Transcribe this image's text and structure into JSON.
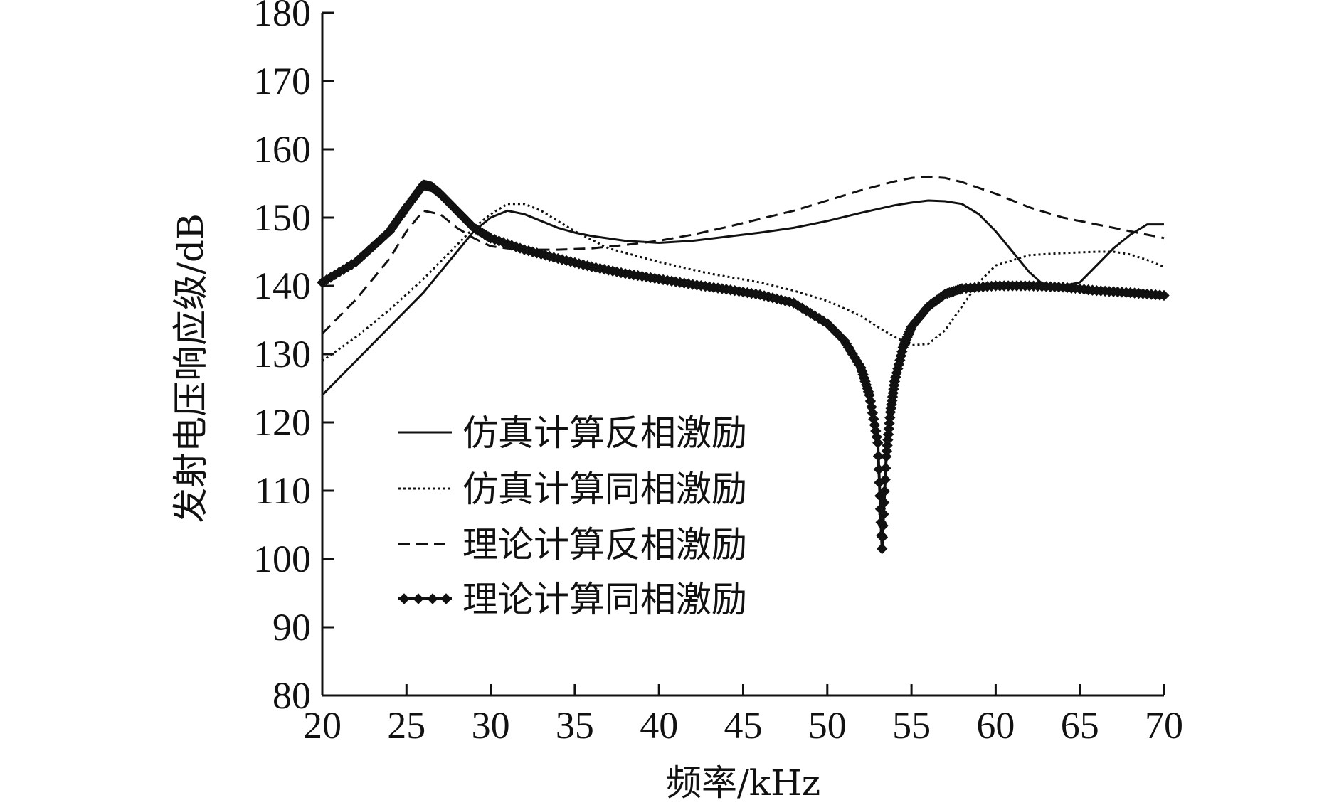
{
  "chart_data": {
    "type": "line",
    "xlabel": "频率/kHz",
    "ylabel": "发射电压响应级/dB",
    "xlim": [
      20,
      70
    ],
    "ylim": [
      80,
      180
    ],
    "xticks": [
      "20",
      "25",
      "30",
      "35",
      "40",
      "45",
      "50",
      "55",
      "60",
      "65",
      "70"
    ],
    "yticks": [
      "80",
      "90",
      "100",
      "110",
      "120",
      "130",
      "140",
      "150",
      "160",
      "170",
      "180"
    ],
    "grid": false,
    "legend_position": "lower-left",
    "series": [
      {
        "name": "仿真计算反相激励",
        "style": "solid",
        "x": [
          20,
          22,
          24,
          26,
          27,
          28,
          29,
          30,
          31,
          32,
          33,
          34,
          35,
          36,
          38,
          40,
          42,
          44,
          46,
          48,
          50,
          52,
          54,
          55,
          56,
          57,
          58,
          59,
          60,
          61,
          62,
          63,
          64,
          65,
          66,
          67,
          68,
          69,
          70
        ],
        "y": [
          124,
          129,
          134,
          139,
          142,
          145,
          148,
          150,
          151,
          150.5,
          149.5,
          148.5,
          147.8,
          147.3,
          146.6,
          146.3,
          146.6,
          147.2,
          147.8,
          148.5,
          149.5,
          150.7,
          151.8,
          152.2,
          152.5,
          152.4,
          152,
          150.5,
          148,
          145,
          142,
          139.8,
          140,
          140.5,
          143,
          145.5,
          147.5,
          149,
          149
        ]
      },
      {
        "name": "仿真计算同相激励",
        "style": "dotted",
        "x": [
          20,
          22,
          24,
          26,
          28,
          29,
          30,
          31,
          32,
          33,
          34,
          35,
          37,
          40,
          43,
          46,
          48,
          50,
          52,
          53,
          54,
          55,
          56,
          57,
          58,
          59,
          60,
          62,
          64,
          66,
          67,
          68,
          69,
          70
        ],
        "y": [
          129,
          132.5,
          136.5,
          141,
          146,
          148.5,
          150.5,
          152,
          152,
          151,
          149.5,
          148,
          145.5,
          143.5,
          141.8,
          140.5,
          139.3,
          137.8,
          135.6,
          134,
          132.5,
          131.3,
          131.5,
          133.5,
          137,
          140.5,
          143,
          144.5,
          144.8,
          145,
          145,
          144.6,
          143.8,
          142.8
        ]
      },
      {
        "name": "理论计算反相激励",
        "style": "dashed",
        "x": [
          20,
          22,
          24,
          25,
          26,
          27,
          28,
          29,
          30,
          31,
          32,
          33,
          34,
          36,
          38,
          40,
          42,
          44,
          46,
          48,
          50,
          52,
          54,
          55,
          56,
          57,
          58,
          60,
          62,
          64,
          66,
          68,
          70
        ],
        "y": [
          133,
          138,
          144,
          148,
          151,
          150.5,
          148.5,
          147,
          145.8,
          145.5,
          145.3,
          145.3,
          145.3,
          145.5,
          146,
          146.6,
          147.5,
          148.6,
          149.8,
          151,
          152.5,
          154,
          155.3,
          155.8,
          156,
          155.8,
          155.2,
          153.5,
          151.5,
          150,
          149,
          148,
          147
        ]
      },
      {
        "name": "理论计算同相激励",
        "style": "solid-diamond-markers",
        "x": [
          20,
          22,
          24,
          25,
          26,
          26.5,
          27,
          28,
          29,
          30,
          32,
          34,
          36,
          38,
          40,
          42,
          44,
          46,
          48,
          50,
          51,
          52,
          52.5,
          53,
          53.25,
          53.5,
          53.75,
          54,
          54.5,
          55,
          56,
          57,
          58,
          60,
          62,
          64,
          66,
          68,
          70
        ],
        "y": [
          140.5,
          143.5,
          148,
          151.5,
          154.8,
          154.5,
          153.5,
          151,
          148.5,
          147,
          145.3,
          144,
          142.8,
          141.8,
          141,
          140.2,
          139.5,
          138.7,
          137.5,
          134.5,
          132,
          128,
          124,
          117,
          101.5,
          115,
          121.5,
          126,
          131,
          134,
          137,
          138.8,
          139.6,
          140,
          140,
          139.8,
          139.3,
          139,
          138.6
        ]
      }
    ]
  }
}
